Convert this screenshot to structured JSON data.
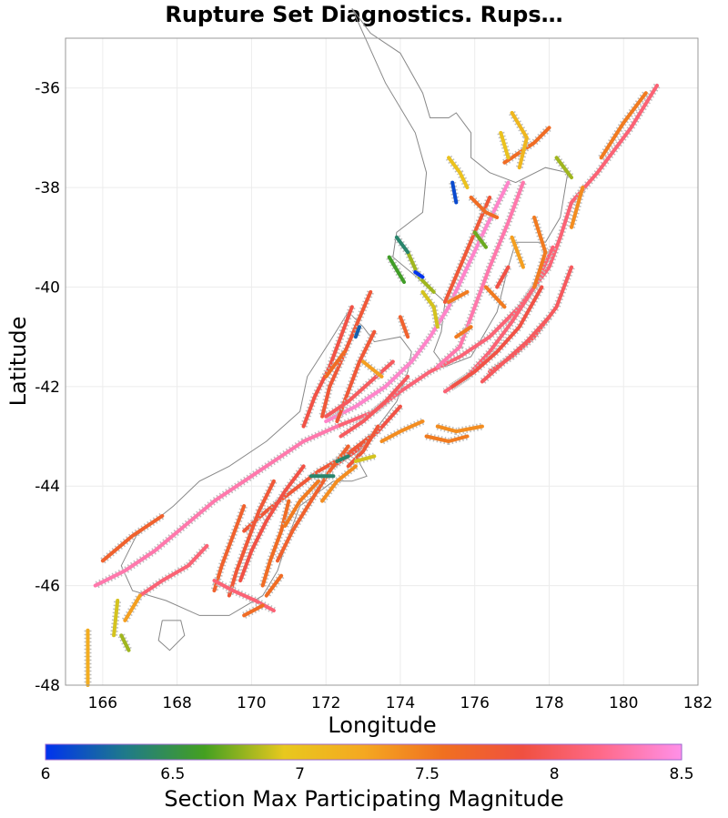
{
  "title": "Rupture Set Diagnostics. Rups…",
  "map": {
    "xlabel": "Longitude",
    "ylabel": "Latitude",
    "xlim": [
      165,
      182
    ],
    "ylim": [
      -48,
      -35
    ],
    "xticks": [
      166,
      168,
      170,
      172,
      174,
      176,
      178,
      180,
      182
    ],
    "yticks": [
      -36,
      -38,
      -40,
      -42,
      -44,
      -46,
      -48
    ],
    "grid": true
  },
  "colorbar": {
    "label": "Section Max Participating Magnitude",
    "min": 6,
    "max": 8.5,
    "ticks": [
      "6",
      "6.5",
      "7",
      "7.5",
      "8",
      "8.5"
    ],
    "stops": [
      "#0033ee",
      "#1f7a8a",
      "#44a020",
      "#e8c81e",
      "#f5a820",
      "#f07020",
      "#f05040",
      "#ff6a8a",
      "#ff90e8"
    ]
  },
  "coastline_color": "#888888",
  "faults": [
    {
      "pts": [
        [
          180.9,
          -35.95
        ],
        [
          180.2,
          -36.8
        ],
        [
          179.3,
          -37.7
        ],
        [
          178.6,
          -38.3
        ],
        [
          178.3,
          -39.0
        ],
        [
          178.0,
          -39.6
        ],
        [
          177.2,
          -40.4
        ],
        [
          176.4,
          -41.0
        ],
        [
          175.6,
          -41.4
        ],
        [
          174.8,
          -41.7
        ],
        [
          174.0,
          -42.1
        ],
        [
          173.3,
          -42.5
        ],
        [
          172.3,
          -42.8
        ]
      ],
      "mag": 8.1
    },
    {
      "pts": [
        [
          172.3,
          -42.8
        ],
        [
          171.4,
          -43.1
        ],
        [
          170.6,
          -43.5
        ],
        [
          169.8,
          -43.9
        ],
        [
          169.0,
          -44.3
        ],
        [
          168.2,
          -44.8
        ],
        [
          167.4,
          -45.3
        ],
        [
          166.6,
          -45.7
        ],
        [
          165.8,
          -46.0
        ]
      ],
      "mag": 8.3
    },
    {
      "pts": [
        [
          176.9,
          -37.9
        ],
        [
          176.3,
          -38.8
        ],
        [
          175.8,
          -39.6
        ],
        [
          175.3,
          -40.4
        ],
        [
          174.8,
          -41.0
        ],
        [
          174.3,
          -41.5
        ],
        [
          173.6,
          -42.0
        ],
        [
          172.8,
          -42.4
        ],
        [
          172.0,
          -42.7
        ]
      ],
      "mag": 8.4
    },
    {
      "pts": [
        [
          177.3,
          -37.9
        ],
        [
          176.9,
          -38.7
        ],
        [
          176.4,
          -39.6
        ],
        [
          176.0,
          -40.4
        ],
        [
          175.6,
          -41.2
        ],
        [
          175.0,
          -41.6
        ]
      ],
      "mag": 8.3
    },
    {
      "pts": [
        [
          178.1,
          -39.2
        ],
        [
          177.6,
          -40.0
        ],
        [
          177.0,
          -40.7
        ],
        [
          176.4,
          -41.3
        ],
        [
          175.8,
          -41.8
        ],
        [
          175.2,
          -42.1
        ]
      ],
      "mag": 8.1
    },
    {
      "pts": [
        [
          178.6,
          -39.6
        ],
        [
          178.2,
          -40.4
        ],
        [
          177.6,
          -41.0
        ],
        [
          177.0,
          -41.4
        ],
        [
          176.4,
          -41.7
        ]
      ],
      "mag": 8.0
    },
    {
      "pts": [
        [
          177.8,
          -40.0
        ],
        [
          177.2,
          -40.8
        ],
        [
          176.6,
          -41.3
        ],
        [
          176.0,
          -41.7
        ],
        [
          175.4,
          -42.0
        ]
      ],
      "mag": 7.9
    },
    {
      "pts": [
        [
          176.4,
          -38.2
        ],
        [
          176.0,
          -38.9
        ],
        [
          175.6,
          -39.6
        ],
        [
          175.2,
          -40.3
        ]
      ],
      "mag": 7.8
    },
    {
      "pts": [
        [
          178.0,
          -40.6
        ],
        [
          177.4,
          -41.1
        ],
        [
          176.8,
          -41.5
        ],
        [
          176.2,
          -41.9
        ]
      ],
      "mag": 8.0
    },
    {
      "pts": [
        [
          176.8,
          -37.5
        ],
        [
          177.6,
          -37.1
        ],
        [
          178.0,
          -36.8
        ]
      ],
      "mag": 7.6
    },
    {
      "pts": [
        [
          177.6,
          -38.6
        ],
        [
          177.9,
          -39.3
        ],
        [
          177.6,
          -40.0
        ]
      ],
      "mag": 7.5
    },
    {
      "pts": [
        [
          179.4,
          -37.4
        ],
        [
          180.0,
          -36.7
        ],
        [
          180.6,
          -36.1
        ]
      ],
      "mag": 7.5
    },
    {
      "pts": [
        [
          177.0,
          -36.5
        ],
        [
          177.4,
          -37.0
        ],
        [
          177.2,
          -37.6
        ]
      ],
      "mag": 7.1
    },
    {
      "pts": [
        [
          176.7,
          -36.9
        ],
        [
          176.9,
          -37.4
        ]
      ],
      "mag": 7.0
    },
    {
      "pts": [
        [
          175.3,
          -37.4
        ],
        [
          175.6,
          -37.7
        ],
        [
          175.8,
          -38.0
        ]
      ],
      "mag": 7.0
    },
    {
      "pts": [
        [
          175.9,
          -38.2
        ],
        [
          176.3,
          -38.5
        ],
        [
          176.6,
          -38.6
        ]
      ],
      "mag": 7.6
    },
    {
      "pts": [
        [
          175.4,
          -37.9
        ],
        [
          175.5,
          -38.3
        ]
      ],
      "mag": 6.1
    },
    {
      "pts": [
        [
          176.0,
          -38.9
        ],
        [
          176.3,
          -39.2
        ]
      ],
      "mag": 6.7
    },
    {
      "pts": [
        [
          174.2,
          -39.3
        ],
        [
          174.5,
          -39.8
        ],
        [
          174.9,
          -40.1
        ]
      ],
      "mag": 6.8
    },
    {
      "pts": [
        [
          173.7,
          -39.4
        ],
        [
          174.1,
          -39.9
        ]
      ],
      "mag": 6.6
    },
    {
      "pts": [
        [
          173.9,
          -39.0
        ],
        [
          174.2,
          -39.3
        ]
      ],
      "mag": 6.4
    },
    {
      "pts": [
        [
          174.6,
          -40.1
        ],
        [
          174.9,
          -40.4
        ],
        [
          175.0,
          -40.8
        ]
      ],
      "mag": 6.9
    },
    {
      "pts": [
        [
          174.4,
          -39.7
        ],
        [
          174.6,
          -39.8
        ]
      ],
      "mag": 6.0
    },
    {
      "pts": [
        [
          176.3,
          -40.0
        ],
        [
          176.8,
          -40.4
        ]
      ],
      "mag": 7.5
    },
    {
      "pts": [
        [
          177.0,
          -39.0
        ],
        [
          177.3,
          -39.6
        ]
      ],
      "mag": 7.3
    },
    {
      "pts": [
        [
          178.9,
          -38.0
        ],
        [
          178.6,
          -38.8
        ]
      ],
      "mag": 7.4
    },
    {
      "pts": [
        [
          178.2,
          -37.4
        ],
        [
          178.6,
          -37.8
        ]
      ],
      "mag": 6.8
    },
    {
      "pts": [
        [
          175.9,
          -40.8
        ],
        [
          175.5,
          -41.0
        ]
      ],
      "mag": 7.5
    },
    {
      "pts": [
        [
          173.2,
          -40.1
        ],
        [
          172.8,
          -40.8
        ],
        [
          172.4,
          -41.5
        ],
        [
          172.1,
          -42.0
        ],
        [
          171.9,
          -42.6
        ]
      ],
      "mag": 7.8
    },
    {
      "pts": [
        [
          172.7,
          -40.4
        ],
        [
          172.4,
          -41.0
        ],
        [
          172.1,
          -41.6
        ],
        [
          171.7,
          -42.2
        ],
        [
          171.4,
          -42.8
        ]
      ],
      "mag": 7.9
    },
    {
      "pts": [
        [
          173.3,
          -40.9
        ],
        [
          172.9,
          -41.5
        ],
        [
          172.6,
          -42.1
        ],
        [
          172.3,
          -42.7
        ]
      ],
      "mag": 7.8
    },
    {
      "pts": [
        [
          173.8,
          -41.5
        ],
        [
          173.2,
          -41.9
        ],
        [
          172.6,
          -42.3
        ],
        [
          172.0,
          -42.6
        ]
      ],
      "mag": 8.0
    },
    {
      "pts": [
        [
          174.2,
          -41.8
        ],
        [
          173.6,
          -42.3
        ],
        [
          173.0,
          -42.7
        ],
        [
          172.4,
          -43.0
        ]
      ],
      "mag": 8.0
    },
    {
      "pts": [
        [
          174.0,
          -42.4
        ],
        [
          173.4,
          -42.9
        ],
        [
          172.8,
          -43.3
        ],
        [
          172.2,
          -43.6
        ]
      ],
      "mag": 7.9
    },
    {
      "pts": [
        [
          173.2,
          -43.0
        ],
        [
          172.5,
          -43.4
        ],
        [
          171.8,
          -43.7
        ],
        [
          171.1,
          -44.1
        ],
        [
          170.4,
          -44.5
        ],
        [
          169.8,
          -44.9
        ]
      ],
      "mag": 7.8
    },
    {
      "pts": [
        [
          172.6,
          -43.2
        ],
        [
          172.1,
          -43.7
        ],
        [
          171.6,
          -44.3
        ],
        [
          171.1,
          -44.9
        ],
        [
          170.7,
          -45.5
        ]
      ],
      "mag": 7.7
    },
    {
      "pts": [
        [
          171.4,
          -43.6
        ],
        [
          170.9,
          -44.1
        ],
        [
          170.4,
          -44.7
        ],
        [
          170.0,
          -45.3
        ],
        [
          169.7,
          -45.9
        ]
      ],
      "mag": 7.9
    },
    {
      "pts": [
        [
          170.6,
          -43.9
        ],
        [
          170.2,
          -44.5
        ],
        [
          169.9,
          -45.1
        ],
        [
          169.6,
          -45.7
        ],
        [
          169.4,
          -46.2
        ]
      ],
      "mag": 7.8
    },
    {
      "pts": [
        [
          169.8,
          -44.4
        ],
        [
          169.5,
          -45.0
        ],
        [
          169.2,
          -45.6
        ],
        [
          169.0,
          -46.1
        ]
      ],
      "mag": 7.7
    },
    {
      "pts": [
        [
          171.0,
          -44.3
        ],
        [
          170.8,
          -44.9
        ],
        [
          170.5,
          -45.5
        ],
        [
          170.3,
          -46.0
        ]
      ],
      "mag": 7.6
    },
    {
      "pts": [
        [
          168.8,
          -45.2
        ],
        [
          168.3,
          -45.6
        ],
        [
          167.6,
          -45.9
        ],
        [
          167.0,
          -46.2
        ]
      ],
      "mag": 8.1
    },
    {
      "pts": [
        [
          169.0,
          -45.9
        ],
        [
          169.5,
          -46.1
        ],
        [
          170.1,
          -46.3
        ],
        [
          170.6,
          -46.5
        ]
      ],
      "mag": 8.1
    },
    {
      "pts": [
        [
          171.8,
          -43.9
        ],
        [
          171.3,
          -44.3
        ],
        [
          170.9,
          -44.8
        ]
      ],
      "mag": 7.5
    },
    {
      "pts": [
        [
          172.8,
          -43.6
        ],
        [
          172.3,
          -43.9
        ],
        [
          171.9,
          -44.3
        ]
      ],
      "mag": 7.4
    },
    {
      "pts": [
        [
          173.4,
          -42.8
        ],
        [
          173.0,
          -43.3
        ],
        [
          172.6,
          -43.6
        ]
      ],
      "mag": 7.8
    },
    {
      "pts": [
        [
          174.6,
          -42.7
        ],
        [
          174.0,
          -42.9
        ],
        [
          173.5,
          -43.1
        ]
      ],
      "mag": 7.4
    },
    {
      "pts": [
        [
          175.0,
          -42.8
        ],
        [
          175.5,
          -42.9
        ],
        [
          176.2,
          -42.8
        ]
      ],
      "mag": 7.4
    },
    {
      "pts": [
        [
          174.7,
          -43.0
        ],
        [
          175.3,
          -43.1
        ],
        [
          175.8,
          -43.0
        ]
      ],
      "mag": 7.5
    },
    {
      "pts": [
        [
          173.3,
          -43.4
        ],
        [
          172.8,
          -43.5
        ]
      ],
      "mag": 6.9
    },
    {
      "pts": [
        [
          172.2,
          -43.8
        ],
        [
          171.6,
          -43.8
        ]
      ],
      "mag": 6.4
    },
    {
      "pts": [
        [
          172.6,
          -43.4
        ],
        [
          172.3,
          -43.5
        ]
      ],
      "mag": 6.4
    },
    {
      "pts": [
        [
          166.0,
          -45.5
        ],
        [
          166.8,
          -45.0
        ],
        [
          167.6,
          -44.6
        ]
      ],
      "mag": 7.7
    },
    {
      "pts": [
        [
          166.6,
          -46.7
        ],
        [
          167.0,
          -46.2
        ]
      ],
      "mag": 7.3
    },
    {
      "pts": [
        [
          165.6,
          -46.9
        ],
        [
          165.6,
          -47.5
        ],
        [
          165.6,
          -48.0
        ]
      ],
      "mag": 7.2
    },
    {
      "pts": [
        [
          166.3,
          -47.0
        ],
        [
          166.4,
          -46.3
        ]
      ],
      "mag": 6.9
    },
    {
      "pts": [
        [
          166.5,
          -47.0
        ],
        [
          166.7,
          -47.3
        ]
      ],
      "mag": 6.8
    },
    {
      "pts": [
        [
          169.8,
          -46.6
        ],
        [
          170.3,
          -46.4
        ]
      ],
      "mag": 7.6
    },
    {
      "pts": [
        [
          170.8,
          -45.8
        ],
        [
          170.4,
          -46.2
        ]
      ],
      "mag": 7.6
    },
    {
      "pts": [
        [
          173.5,
          -41.8
        ],
        [
          173.0,
          -41.5
        ]
      ],
      "mag": 7.3
    },
    {
      "pts": [
        [
          172.9,
          -40.8
        ],
        [
          172.8,
          -41.0
        ]
      ],
      "mag": 6.2
    },
    {
      "pts": [
        [
          172.5,
          -41.3
        ],
        [
          172.0,
          -41.8
        ]
      ],
      "mag": 7.6
    },
    {
      "pts": [
        [
          175.8,
          -40.1
        ],
        [
          175.3,
          -40.3
        ]
      ],
      "mag": 7.5
    },
    {
      "pts": [
        [
          176.9,
          -39.6
        ],
        [
          176.6,
          -40.0
        ]
      ],
      "mag": 7.9
    },
    {
      "pts": [
        [
          174.0,
          -40.6
        ],
        [
          174.2,
          -41.0
        ]
      ],
      "mag": 7.7
    }
  ]
}
